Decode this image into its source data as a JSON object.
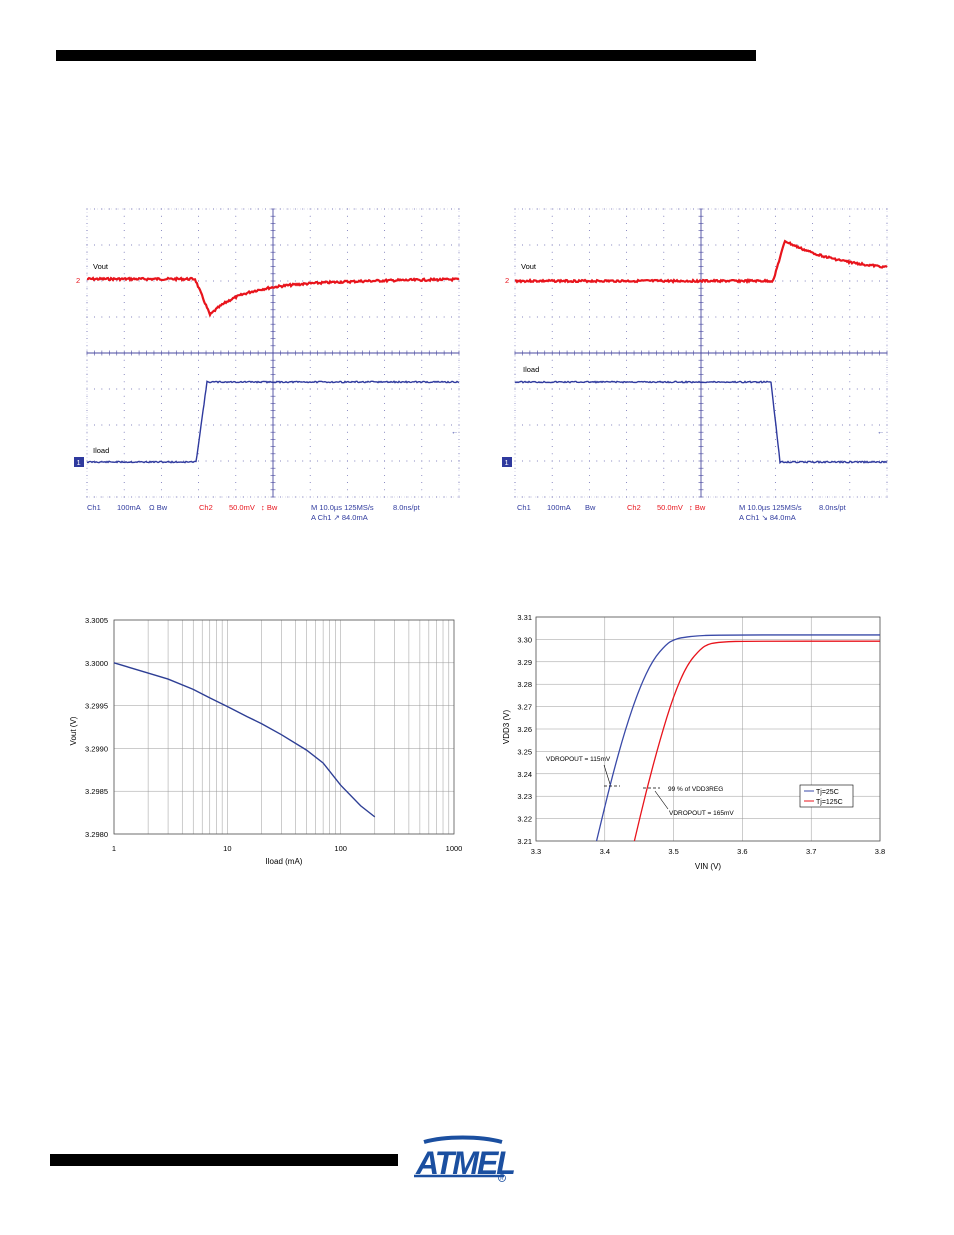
{
  "scope1": {
    "trace_top_label": "Vout",
    "trace_bottom_label": "Iload",
    "marker_top": "2",
    "marker_bottom": "1",
    "footer": {
      "ch1": "Ch1",
      "ch1_scale": "100mA",
      "ch1_flags": "Ω Bw",
      "ch2": "Ch2",
      "ch2_scale": "50.0mV",
      "ch2_flags": "↕ Bw",
      "timebase": "M 10.0µs 125MS/s",
      "resolution": "8.0ns/pt",
      "trigger": "A  Ch1  ↗  84.0mA"
    },
    "colors": {
      "vout": "#e8141c",
      "iload": "#2f3a9e",
      "grid": "#4a4aa0"
    }
  },
  "scope2": {
    "trace_top_label": "Vout",
    "trace_bottom_label": "Iload",
    "marker_top": "2",
    "marker_bottom": "1",
    "footer": {
      "ch1": "Ch1",
      "ch1_scale": "100mA",
      "ch1_flags": "Bw",
      "ch2": "Ch2",
      "ch2_scale": "50.0mV",
      "ch2_flags": "↕ Bw",
      "timebase": "M 10.0µs 125MS/s",
      "resolution": "8.0ns/pt",
      "trigger": "A  Ch1  ↘  84.0mA"
    }
  },
  "chart_data": [
    {
      "type": "line",
      "xlabel": "Iload (mA)",
      "ylabel": "Vout (V)",
      "xscale": "log",
      "xlim": [
        1,
        1000
      ],
      "ylim": [
        3.298,
        3.3005
      ],
      "xticks": [
        "1",
        "10",
        "100",
        "1000"
      ],
      "yticks": [
        "3.3005",
        "3.3000",
        "3.2995",
        "3.2990",
        "3.2985",
        "3.2980"
      ],
      "grid": true,
      "series": [
        {
          "color": "#2e3f95",
          "x": [
            1,
            2,
            3,
            5,
            7,
            10,
            15,
            20,
            30,
            50,
            70,
            100,
            150,
            200
          ],
          "y": [
            3.3,
            3.29988,
            3.29981,
            3.29969,
            3.29959,
            3.29949,
            3.29937,
            3.29929,
            3.29916,
            3.29898,
            3.29883,
            3.29857,
            3.29833,
            3.2982
          ]
        }
      ]
    },
    {
      "type": "line",
      "xlabel": "VIN (V)",
      "ylabel": "VDD3 (V)",
      "xlim": [
        3.3,
        3.8
      ],
      "ylim": [
        3.21,
        3.31
      ],
      "xticks": [
        "3.3",
        "3.4",
        "3.5",
        "3.6",
        "3.7",
        "3.8"
      ],
      "yticks": [
        "3.31",
        "3.30",
        "3.29",
        "3.28",
        "3.27",
        "3.26",
        "3.25",
        "3.24",
        "3.23",
        "3.22",
        "3.21"
      ],
      "grid": true,
      "legend": "inside-right",
      "series": [
        {
          "name": "Tj=25C",
          "color": "#3a4aa8",
          "x": [
            3.388,
            3.41,
            3.43,
            3.45,
            3.47,
            3.49,
            3.5,
            3.51,
            3.53,
            3.56,
            3.8
          ],
          "y": [
            3.21,
            3.238,
            3.26,
            3.278,
            3.291,
            3.298,
            3.2998,
            3.3007,
            3.3015,
            3.302,
            3.302
          ]
        },
        {
          "name": "Tj=125C",
          "color": "#e8141c",
          "x": [
            3.443,
            3.46,
            3.48,
            3.5,
            3.52,
            3.54,
            3.55,
            3.56,
            3.58,
            3.6,
            3.8
          ],
          "y": [
            3.21,
            3.232,
            3.255,
            3.275,
            3.289,
            3.296,
            3.2978,
            3.2985,
            3.299,
            3.2992,
            3.2992
          ]
        }
      ],
      "annotations": {
        "dropout_25": "VDROPOUT = 115mV",
        "dropout_125": "VDROPOUT = 165mV",
        "threshold": "99 % of VDD3REG"
      }
    }
  ],
  "logo": {
    "text": "ATMEL",
    "color": "#1b4fa0"
  }
}
